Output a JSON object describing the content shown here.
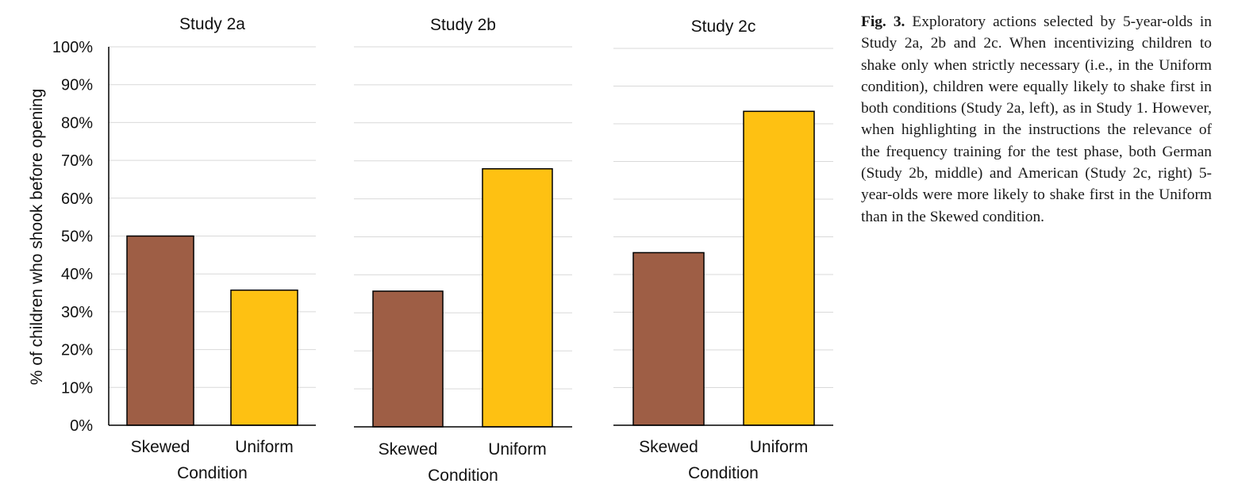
{
  "chart_data": [
    {
      "type": "bar",
      "title": "Study 2a",
      "categories": [
        "Skewed",
        "Uniform"
      ],
      "values": [
        50,
        35.7
      ],
      "colors": [
        "#9e5e45",
        "#fec112"
      ],
      "xlabel": "Condition",
      "ylabel": "% of children who shook before opening",
      "ylim": [
        0,
        100
      ],
      "yticks": [
        "0%",
        "10%",
        "20%",
        "30%",
        "40%",
        "50%",
        "60%",
        "70%",
        "80%",
        "90%",
        "100%"
      ],
      "grid": true
    },
    {
      "type": "bar",
      "title": "Study 2b",
      "categories": [
        "Skewed",
        "Uniform"
      ],
      "values": [
        35.7,
        67.9
      ],
      "colors": [
        "#9e5e45",
        "#fec112"
      ],
      "xlabel": "Condition",
      "ylim": [
        0,
        100
      ],
      "grid": true
    },
    {
      "type": "bar",
      "title": "Study 2c",
      "categories": [
        "Skewed",
        "Uniform"
      ],
      "values": [
        45.8,
        83.3
      ],
      "colors": [
        "#9e5e45",
        "#fec112"
      ],
      "xlabel": "Condition",
      "ylim": [
        0,
        100
      ],
      "grid": true
    }
  ],
  "caption": {
    "label": "Fig. 3.",
    "text": " Exploratory actions selected by 5-year-olds in Study 2a, 2b and 2c. When incentivizing children to shake only when strictly necessary (i.e., in the Uniform condition), children were equally likely to shake first in both conditions (Study 2a, left), as in Study 1. However, when highlighting in the instructions the relevance of the frequency training for the test phase, both German (Study 2b, middle) and American (Study 2c, right) 5-year-olds were more likely to shake first in the Uniform than in the Skewed condition."
  }
}
